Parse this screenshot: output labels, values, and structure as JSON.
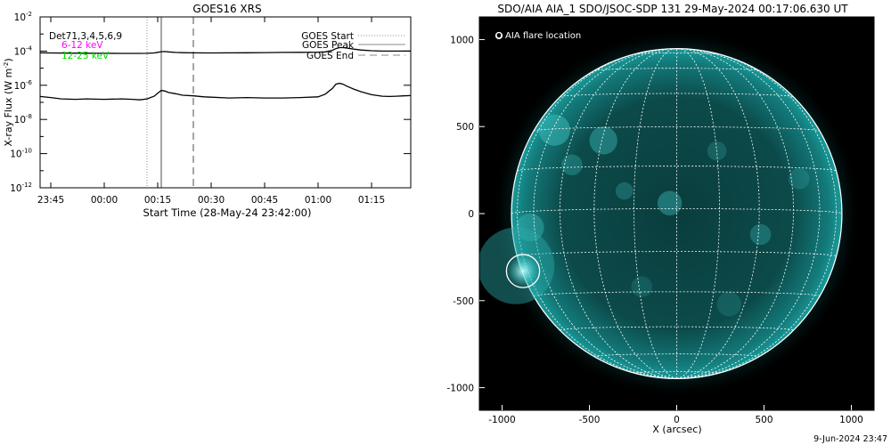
{
  "footer_date": "9-Jun-2024 23:47",
  "chart_data": [
    {
      "type": "line",
      "title": "GOES16 XRS",
      "xlabel": "Start Time (28-May-24 23:42:00)",
      "ylabel": "X-ray Flux (W m",
      "ylabel_sup": "-2",
      "ylabel_close": ")",
      "y_scale": "log",
      "ylim": [
        1e-12,
        0.01
      ],
      "xlim": [
        "23:42",
        "01:26"
      ],
      "y_ticks": [
        {
          "base": "10",
          "exp": "-12",
          "value": 1e-12
        },
        {
          "base": "10",
          "exp": "-10",
          "value": 1e-10
        },
        {
          "base": "10",
          "exp": "-8",
          "value": 1e-08
        },
        {
          "base": "10",
          "exp": "-6",
          "value": 1e-06
        },
        {
          "base": "10",
          "exp": "-4",
          "value": 0.0001
        },
        {
          "base": "10",
          "exp": "-2",
          "value": 0.01
        }
      ],
      "x_ticks": [
        "23:45",
        "00:00",
        "00:15",
        "00:30",
        "00:45",
        "01:00",
        "01:15"
      ],
      "legend_left": [
        {
          "text": "Det71,3,4,5,6,9",
          "color": "#000000"
        },
        {
          "text": "6-12 keV",
          "color": "#ff00ff"
        },
        {
          "text": "12-25 keV",
          "color": "#00dd00"
        }
      ],
      "legend_right": [
        {
          "text": "GOES Start",
          "style": "dotted"
        },
        {
          "text": "GOES Peak",
          "style": "solid"
        },
        {
          "text": "GOES End",
          "style": "dashed"
        }
      ],
      "markers": {
        "start": "00:12",
        "peak": "00:16",
        "end": "00:25"
      },
      "series": [
        {
          "color": "#000000",
          "x": [
            "23:42",
            "23:45",
            "23:50",
            "23:55",
            "00:00",
            "00:05",
            "00:10",
            "00:12",
            "00:14",
            "00:15",
            "00:16",
            "00:17",
            "00:18",
            "00:20",
            "00:22",
            "00:25",
            "00:30",
            "00:35",
            "00:40",
            "00:45",
            "00:50",
            "00:55",
            "01:00",
            "01:02",
            "01:04",
            "01:05",
            "01:06",
            "01:07",
            "01:08",
            "01:10",
            "01:12",
            "01:15",
            "01:18",
            "01:20",
            "01:22",
            "01:24",
            "01:26"
          ],
          "values": [
            8e-05,
            7.8e-05,
            7.6e-05,
            7.5e-05,
            7.4e-05,
            7.3e-05,
            7.3e-05,
            7.4e-05,
            7.8e-05,
            8.5e-05,
            9.2e-05,
            9.4e-05,
            9e-05,
            8.4e-05,
            8.1e-05,
            7.9e-05,
            7.8e-05,
            7.9e-05,
            8e-05,
            8.2e-05,
            8.4e-05,
            8.5e-05,
            8.7e-05,
            9e-05,
            0.00011,
            0.00014,
            0.00016,
            0.00016,
            0.00015,
            0.00013,
            0.000115,
            0.000105,
            0.0001,
            0.0001,
            0.0001,
            0.0001,
            0.0001
          ]
        },
        {
          "color": "#000000",
          "x": [
            "23:42",
            "23:45",
            "23:48",
            "23:52",
            "23:55",
            "00:00",
            "00:05",
            "00:08",
            "00:10",
            "00:12",
            "00:14",
            "00:15",
            "00:16",
            "00:17",
            "00:18",
            "00:20",
            "00:22",
            "00:25",
            "00:28",
            "00:30",
            "00:35",
            "00:40",
            "00:45",
            "00:50",
            "00:55",
            "01:00",
            "01:02",
            "01:04",
            "01:05",
            "01:06",
            "01:07",
            "01:08",
            "01:10",
            "01:12",
            "01:15",
            "01:18",
            "01:20",
            "01:22",
            "01:24",
            "01:26"
          ],
          "values": [
            2.2e-07,
            1.9e-07,
            1.6e-07,
            1.5e-07,
            1.6e-07,
            1.5e-07,
            1.6e-07,
            1.5e-07,
            1.4e-07,
            1.6e-07,
            2.3e-07,
            3.4e-07,
            5e-07,
            4.6e-07,
            3.8e-07,
            3.2e-07,
            2.6e-07,
            2.4e-07,
            2.1e-07,
            2e-07,
            1.8e-07,
            1.9e-07,
            1.8e-07,
            1.8e-07,
            1.9e-07,
            2.1e-07,
            3e-07,
            6.5e-07,
            1.15e-06,
            1.3e-06,
            1.15e-06,
            9e-07,
            6e-07,
            4.2e-07,
            2.8e-07,
            2.3e-07,
            2.2e-07,
            2.3e-07,
            2.4e-07,
            2.5e-07
          ]
        }
      ]
    },
    {
      "type": "image",
      "title": "SDO/AIA AIA_1 SDO/JSOC-SDP 131 29-May-2024 00:17:06.630 UT",
      "xlabel": "X (arcsec)",
      "xlim": [
        -1130,
        1130
      ],
      "ylim": [
        -1130,
        1130
      ],
      "x_ticks": [
        -1000,
        -500,
        0,
        500,
        1000
      ],
      "y_ticks": [
        1000,
        500,
        0,
        -500,
        -1000
      ],
      "legend": "O AIA flare location",
      "flare_location": {
        "x": -880,
        "y": -330,
        "radius": 95
      },
      "solar_radius": 946,
      "grid": true,
      "colors": {
        "disk": "#0f7070",
        "corona": "#0a4a4a",
        "bright": "#c8ffff",
        "grid": "#ffffff",
        "background": "#000000"
      }
    }
  ]
}
